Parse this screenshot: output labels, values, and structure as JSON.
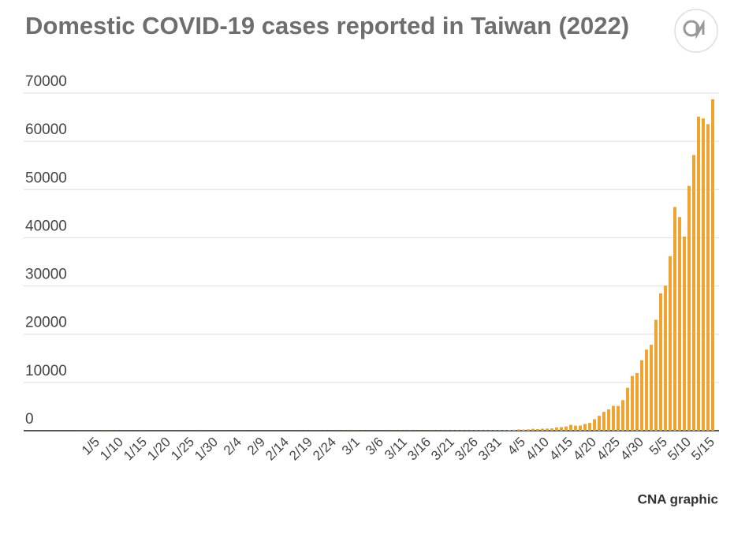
{
  "chart_data": {
    "type": "bar",
    "title": "Domestic COVID-19 cases reported in Taiwan (2022)",
    "source": "CNA graphic",
    "color": "#f0a32f",
    "grid": true,
    "ylim": [
      0,
      70000
    ],
    "yticks": [
      0,
      10000,
      20000,
      30000,
      40000,
      50000,
      60000,
      70000
    ],
    "categories": [
      null,
      null,
      null,
      null,
      "1/5",
      null,
      null,
      null,
      null,
      "1/10",
      null,
      null,
      null,
      null,
      "1/15",
      null,
      null,
      null,
      null,
      "1/20",
      null,
      null,
      null,
      null,
      "1/25",
      null,
      null,
      null,
      null,
      "1/30",
      null,
      null,
      null,
      null,
      "2/4",
      null,
      null,
      null,
      null,
      "2/9",
      null,
      null,
      null,
      null,
      "2/14",
      null,
      null,
      null,
      null,
      "2/19",
      null,
      null,
      null,
      null,
      "2/24",
      null,
      null,
      null,
      null,
      "3/1",
      null,
      null,
      null,
      null,
      "3/6",
      null,
      null,
      null,
      null,
      "3/11",
      null,
      null,
      null,
      null,
      "3/16",
      null,
      null,
      null,
      null,
      "3/21",
      null,
      null,
      null,
      null,
      "3/26",
      null,
      null,
      null,
      null,
      "3/31",
      null,
      null,
      null,
      null,
      "4/5",
      null,
      null,
      null,
      null,
      "4/10",
      null,
      null,
      null,
      null,
      "4/15",
      null,
      null,
      null,
      null,
      "4/20",
      null,
      null,
      null,
      null,
      "4/25",
      null,
      null,
      null,
      null,
      "4/30",
      null,
      null,
      null,
      null,
      "5/5",
      null,
      null,
      null,
      null,
      "5/10",
      null,
      null,
      null,
      null,
      "5/15"
    ],
    "values": [
      10,
      12,
      8,
      15,
      20,
      18,
      25,
      30,
      22,
      18,
      15,
      12,
      20,
      25,
      18,
      12,
      10,
      15,
      8,
      12,
      10,
      14,
      18,
      15,
      12,
      20,
      22,
      18,
      15,
      10,
      8,
      5,
      8,
      10,
      12,
      8,
      6,
      10,
      12,
      15,
      10,
      8,
      12,
      10,
      8,
      15,
      20,
      18,
      22,
      25,
      30,
      28,
      22,
      20,
      18,
      25,
      30,
      35,
      40,
      30,
      25,
      20,
      18,
      15,
      12,
      20,
      25,
      30,
      35,
      40,
      45,
      38,
      30,
      25,
      30,
      35,
      40,
      45,
      50,
      55,
      60,
      65,
      70,
      75,
      80,
      85,
      90,
      95,
      100,
      110,
      104,
      150,
      197,
      261,
      229,
      277,
      381,
      335,
      411,
      424,
      477,
      683,
      747,
      864,
      1209,
      1035,
      1069,
      1389,
      1611,
      2389,
      3084,
      3905,
      4419,
      5159,
      5130,
      6339,
      8897,
      11353,
      11950,
      14610,
      16805,
      17811,
      23006,
      28483,
      30082,
      36188,
      46375,
      44287,
      40245,
      50768,
      57151,
      65108,
      64729,
      63565,
      68713
    ]
  }
}
